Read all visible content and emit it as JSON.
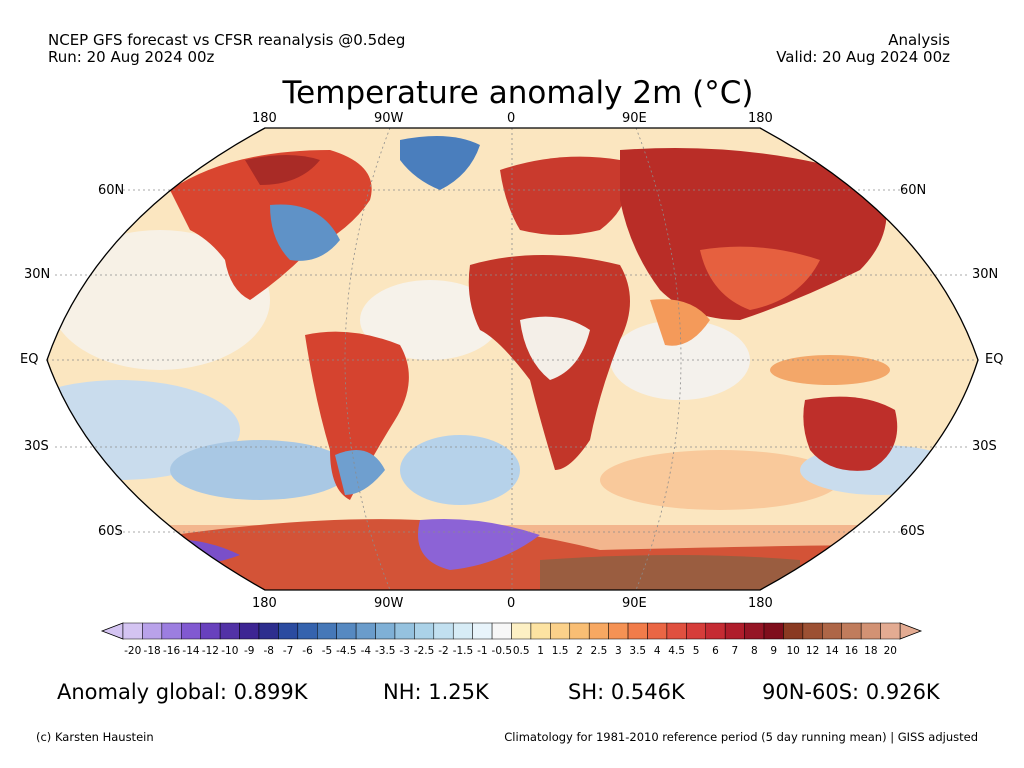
{
  "header": {
    "left_line1": "NCEP GFS forecast vs CFSR reanalysis @0.5deg",
    "left_line2": "Run: 20 Aug 2024 00z",
    "right_line1": "Analysis",
    "right_line2": "Valid: 20 Aug 2024 00z",
    "title": "Temperature anomaly 2m (°C)"
  },
  "map": {
    "projection": "Robinson",
    "lon_labels": [
      "180",
      "90W",
      "0",
      "90E",
      "180"
    ],
    "lat_labels": [
      "60N",
      "30N",
      "EQ",
      "30S",
      "60S"
    ]
  },
  "colorbar": {
    "labels": [
      "-20",
      "-18",
      "-16",
      "-14",
      "-12",
      "-10",
      "-9",
      "-8",
      "-7",
      "-6",
      "-5",
      "-4.5",
      "-4",
      "-3.5",
      "-3",
      "-2.5",
      "-2",
      "-1.5",
      "-1",
      "-0.5",
      "0.5",
      "1",
      "1.5",
      "2",
      "2.5",
      "3",
      "3.5",
      "4",
      "4.5",
      "5",
      "6",
      "7",
      "8",
      "9",
      "10",
      "12",
      "14",
      "16",
      "18",
      "20"
    ],
    "colors": [
      "#d4c4f2",
      "#b9a2ea",
      "#9c7ee0",
      "#8159d1",
      "#6841bd",
      "#5232a6",
      "#3d2593",
      "#2d2e8e",
      "#2b4ba0",
      "#3563ae",
      "#4678b8",
      "#5689c1",
      "#6a9ccb",
      "#7fb0d6",
      "#95c2df",
      "#abd2e8",
      "#c2e0f0",
      "#d7ecf6",
      "#e8f4fb",
      "#f7f7f7",
      "#fdf0c4",
      "#fde3a2",
      "#fbd18a",
      "#f9be74",
      "#f7a862",
      "#f59254",
      "#f17c4a",
      "#ea6644",
      "#e0503f",
      "#d63d3a",
      "#c52b33",
      "#af1d2b",
      "#951525",
      "#7f0e1c",
      "#8a3a22",
      "#9c5033",
      "#ae6647",
      "#c07c5c",
      "#d29274",
      "#e3ab92"
    ]
  },
  "stats": {
    "global": "Anomaly global: 0.899K",
    "nh": "NH: 1.25K",
    "sh": "SH: 0.546K",
    "polar": "90N-60S: 0.926K"
  },
  "footer": {
    "credit": "(c) Karsten Haustein",
    "note": "Climatology for 1981-2010 reference period (5 day running mean) | GISS adjusted"
  }
}
